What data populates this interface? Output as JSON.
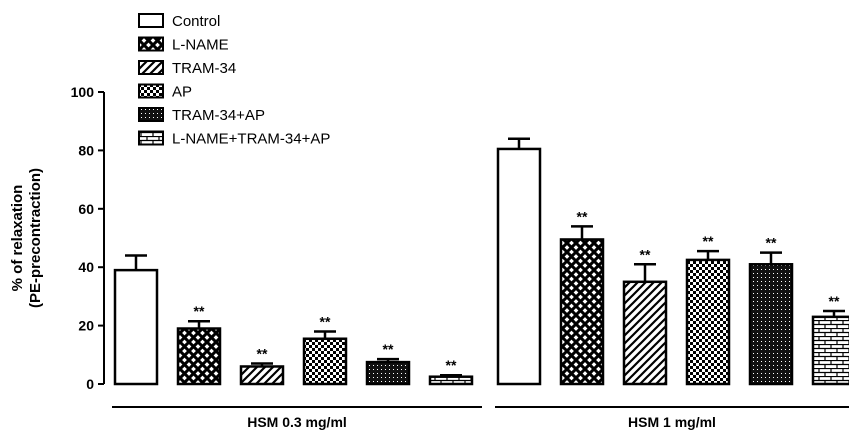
{
  "chart_data": {
    "type": "bar",
    "title": "",
    "ylabel_line1": "% of relaxation",
    "ylabel_line2": "(PE-precontraction)",
    "ylim": [
      0,
      100
    ],
    "yticks": [
      "0",
      "20",
      "40",
      "60",
      "80",
      "100"
    ],
    "groups": [
      "HSM 0.3 mg/ml",
      "HSM 1 mg/ml"
    ],
    "legend_position": "top-left",
    "significance_label": "**",
    "series": [
      {
        "name": "Control",
        "pattern": "blank",
        "values": [
          39,
          80.5
        ],
        "errors": [
          5,
          3.5
        ],
        "significant": [
          false,
          false
        ]
      },
      {
        "name": "L-NAME",
        "pattern": "crosshatch",
        "values": [
          19,
          49.5
        ],
        "errors": [
          2.5,
          4.5
        ],
        "significant": [
          true,
          true
        ]
      },
      {
        "name": "TRAM-34",
        "pattern": "diagonal",
        "values": [
          6,
          35
        ],
        "errors": [
          1,
          6
        ],
        "significant": [
          true,
          true
        ]
      },
      {
        "name": "AP",
        "pattern": "checker",
        "values": [
          15.5,
          42.5
        ],
        "errors": [
          2.5,
          3
        ],
        "significant": [
          true,
          true
        ]
      },
      {
        "name": "TRAM-34+AP",
        "pattern": "dots",
        "values": [
          7.5,
          41
        ],
        "errors": [
          1,
          4
        ],
        "significant": [
          true,
          true
        ]
      },
      {
        "name": "L-NAME+TRAM-34+AP",
        "pattern": "brick",
        "values": [
          2.5,
          23
        ],
        "errors": [
          0.5,
          2
        ],
        "significant": [
          true,
          true
        ]
      }
    ]
  }
}
